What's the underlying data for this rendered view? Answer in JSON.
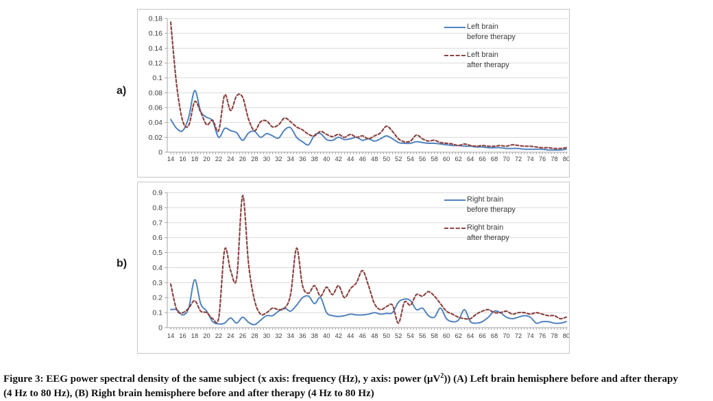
{
  "figure": {
    "caption_part1": "Figure 3: EEG power spectral density of the same subject (x axis: frequency (Hz), y axis: power (μV",
    "caption_sup": "2",
    "caption_part2": ")) (A) Left brain hemisphere before and after therapy (4 Hz to 80 Hz), (B) Right brain hemisphere before and after therapy (4 Hz to 80 Hz)"
  },
  "colors": {
    "before_line": "#4f81bd",
    "after_line": "#8c4340",
    "gridline": "#d9d9d9",
    "axis": "#a6a6a6",
    "tick_text": "#404040"
  },
  "chart_data": [
    {
      "type": "line",
      "panel_label": "a)",
      "title": "",
      "xlabel": "frequency (Hz)",
      "ylabel": "power (μV²)",
      "xlim": [
        14,
        80
      ],
      "ylim": [
        0,
        0.18
      ],
      "grid": "horizontal",
      "legend_position": "inside-top-right",
      "x_tick_labels": [
        "14",
        "16",
        "18",
        "20",
        "22",
        "24",
        "26",
        "28",
        "30",
        "32",
        "34",
        "36",
        "38",
        "40",
        "42",
        "44",
        "46",
        "48",
        "50",
        "52",
        "54",
        "56",
        "58",
        "60",
        "62",
        "64",
        "66",
        "68",
        "70",
        "72",
        "74",
        "76",
        "78",
        "80"
      ],
      "y_tick_labels": [
        "0.18",
        "0.16",
        "0.14",
        "0.12",
        "0.1",
        "0.08",
        "0.06",
        "0.04",
        "0.02",
        "0"
      ],
      "x": [
        14,
        15,
        16,
        17,
        18,
        19,
        20,
        21,
        22,
        23,
        24,
        25,
        26,
        27,
        28,
        29,
        30,
        31,
        32,
        33,
        34,
        35,
        36,
        37,
        38,
        39,
        40,
        41,
        42,
        43,
        44,
        45,
        46,
        47,
        48,
        49,
        50,
        51,
        52,
        53,
        54,
        55,
        56,
        57,
        58,
        59,
        60,
        61,
        62,
        63,
        64,
        65,
        66,
        67,
        68,
        69,
        70,
        71,
        72,
        73,
        74,
        75,
        76,
        77,
        78,
        79,
        80
      ],
      "series": [
        {
          "name": "Left brain before therapy",
          "label_lines": [
            "Left brain",
            "before therapy"
          ],
          "style": "solid",
          "color": "#4f81bd",
          "values": [
            0.044,
            0.032,
            0.029,
            0.047,
            0.083,
            0.055,
            0.047,
            0.042,
            0.02,
            0.032,
            0.029,
            0.026,
            0.016,
            0.026,
            0.028,
            0.02,
            0.025,
            0.022,
            0.019,
            0.03,
            0.033,
            0.02,
            0.014,
            0.01,
            0.023,
            0.025,
            0.017,
            0.016,
            0.02,
            0.017,
            0.018,
            0.02,
            0.016,
            0.018,
            0.015,
            0.018,
            0.022,
            0.018,
            0.013,
            0.012,
            0.012,
            0.014,
            0.013,
            0.012,
            0.012,
            0.011,
            0.01,
            0.009,
            0.009,
            0.008,
            0.008,
            0.007,
            0.007,
            0.006,
            0.006,
            0.006,
            0.005,
            0.005,
            0.005,
            0.004,
            0.004,
            0.004,
            0.004,
            0.003,
            0.003,
            0.003,
            0.004
          ]
        },
        {
          "name": "Left brain after therapy",
          "label_lines": [
            "Left brain",
            "after therapy"
          ],
          "style": "dashed",
          "color": "#8c4340",
          "values": [
            0.175,
            0.09,
            0.042,
            0.036,
            0.068,
            0.054,
            0.037,
            0.043,
            0.029,
            0.077,
            0.056,
            0.076,
            0.074,
            0.044,
            0.029,
            0.041,
            0.042,
            0.034,
            0.037,
            0.046,
            0.041,
            0.034,
            0.03,
            0.024,
            0.022,
            0.028,
            0.024,
            0.021,
            0.024,
            0.02,
            0.024,
            0.02,
            0.022,
            0.018,
            0.022,
            0.026,
            0.035,
            0.028,
            0.018,
            0.014,
            0.015,
            0.023,
            0.018,
            0.015,
            0.016,
            0.013,
            0.012,
            0.011,
            0.009,
            0.011,
            0.009,
            0.008,
            0.009,
            0.008,
            0.008,
            0.009,
            0.008,
            0.01,
            0.009,
            0.008,
            0.008,
            0.007,
            0.006,
            0.006,
            0.005,
            0.005,
            0.006
          ]
        }
      ]
    },
    {
      "type": "line",
      "panel_label": "b)",
      "title": "",
      "xlabel": "frequency (Hz)",
      "ylabel": "power (μV²)",
      "xlim": [
        14,
        80
      ],
      "ylim": [
        0,
        0.9
      ],
      "grid": "horizontal",
      "legend_position": "inside-top-right",
      "x_tick_labels": [
        "14",
        "16",
        "18",
        "20",
        "22",
        "24",
        "26",
        "28",
        "30",
        "32",
        "34",
        "36",
        "38",
        "40",
        "42",
        "44",
        "46",
        "48",
        "50",
        "52",
        "54",
        "56",
        "58",
        "60",
        "62",
        "64",
        "66",
        "68",
        "70",
        "72",
        "74",
        "76",
        "78",
        "80"
      ],
      "y_tick_labels": [
        "0.9",
        "0.8",
        "0.7",
        "0.6",
        "0.5",
        "0.4",
        "0.3",
        "0.2",
        "0.1",
        "0"
      ],
      "x": [
        14,
        15,
        16,
        17,
        18,
        19,
        20,
        21,
        22,
        23,
        24,
        25,
        26,
        27,
        28,
        29,
        30,
        31,
        32,
        33,
        34,
        35,
        36,
        37,
        38,
        39,
        40,
        41,
        42,
        43,
        44,
        45,
        46,
        47,
        48,
        49,
        50,
        51,
        52,
        53,
        54,
        55,
        56,
        57,
        58,
        59,
        60,
        61,
        62,
        63,
        64,
        65,
        66,
        67,
        68,
        69,
        70,
        71,
        72,
        73,
        74,
        75,
        76,
        77,
        78,
        79,
        80
      ],
      "series": [
        {
          "name": "Right brain before therapy",
          "label_lines": [
            "Right brain",
            "before therapy"
          ],
          "style": "solid",
          "color": "#4f81bd",
          "values": [
            0.12,
            0.12,
            0.085,
            0.13,
            0.32,
            0.16,
            0.11,
            0.04,
            0.025,
            0.03,
            0.065,
            0.03,
            0.07,
            0.035,
            0.02,
            0.05,
            0.08,
            0.08,
            0.11,
            0.13,
            0.11,
            0.15,
            0.2,
            0.21,
            0.16,
            0.2,
            0.1,
            0.08,
            0.075,
            0.08,
            0.09,
            0.085,
            0.085,
            0.09,
            0.1,
            0.09,
            0.095,
            0.1,
            0.17,
            0.19,
            0.18,
            0.12,
            0.13,
            0.08,
            0.07,
            0.13,
            0.06,
            0.04,
            0.05,
            0.12,
            0.04,
            0.03,
            0.04,
            0.07,
            0.11,
            0.1,
            0.07,
            0.06,
            0.07,
            0.08,
            0.07,
            0.03,
            0.04,
            0.04,
            0.03,
            0.03,
            0.04
          ]
        },
        {
          "name": "Right brain after therapy",
          "label_lines": [
            "Right brain",
            "after therapy"
          ],
          "style": "dashed",
          "color": "#8c4340",
          "values": [
            0.29,
            0.12,
            0.1,
            0.13,
            0.18,
            0.11,
            0.1,
            0.06,
            0.06,
            0.52,
            0.38,
            0.33,
            0.88,
            0.42,
            0.18,
            0.09,
            0.1,
            0.13,
            0.12,
            0.13,
            0.22,
            0.53,
            0.28,
            0.23,
            0.28,
            0.21,
            0.27,
            0.22,
            0.28,
            0.2,
            0.26,
            0.3,
            0.38,
            0.28,
            0.16,
            0.12,
            0.14,
            0.15,
            0.03,
            0.17,
            0.15,
            0.22,
            0.21,
            0.24,
            0.21,
            0.16,
            0.11,
            0.09,
            0.07,
            0.06,
            0.06,
            0.09,
            0.11,
            0.12,
            0.1,
            0.1,
            0.11,
            0.09,
            0.1,
            0.1,
            0.09,
            0.1,
            0.09,
            0.08,
            0.08,
            0.06,
            0.07
          ]
        }
      ]
    }
  ]
}
